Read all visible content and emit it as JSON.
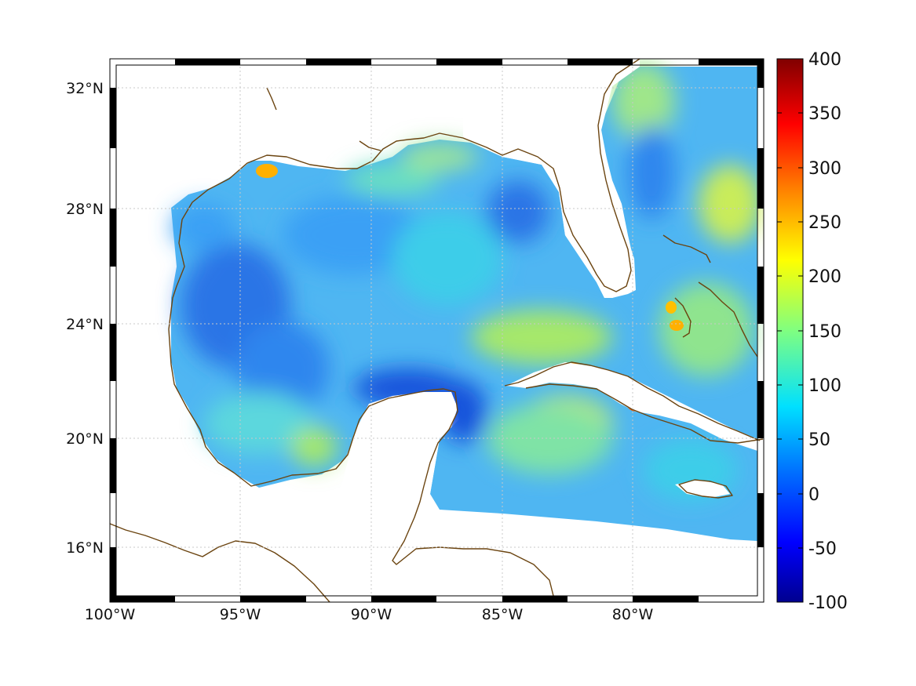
{
  "map": {
    "x_ticks": [
      "100°W",
      "95°W",
      "90°W",
      "85°W",
      "80°W"
    ],
    "y_ticks": [
      "32°N",
      "28°N",
      "24°N",
      "20°N",
      "16°N"
    ],
    "grid": true,
    "frame_style": "black-white alternating border",
    "coastline_color": "#6b4410"
  },
  "colorbar": {
    "ticks": [
      "400",
      "350",
      "300",
      "250",
      "200",
      "150",
      "100",
      "50",
      "0",
      "-50",
      "-100"
    ],
    "range": [
      -100,
      400
    ],
    "colormap": "jet",
    "colors": [
      "#00008f",
      "#0000ff",
      "#0080ff",
      "#00ffff",
      "#80ff80",
      "#ffff00",
      "#ff8000",
      "#ff0000",
      "#800000"
    ]
  }
}
